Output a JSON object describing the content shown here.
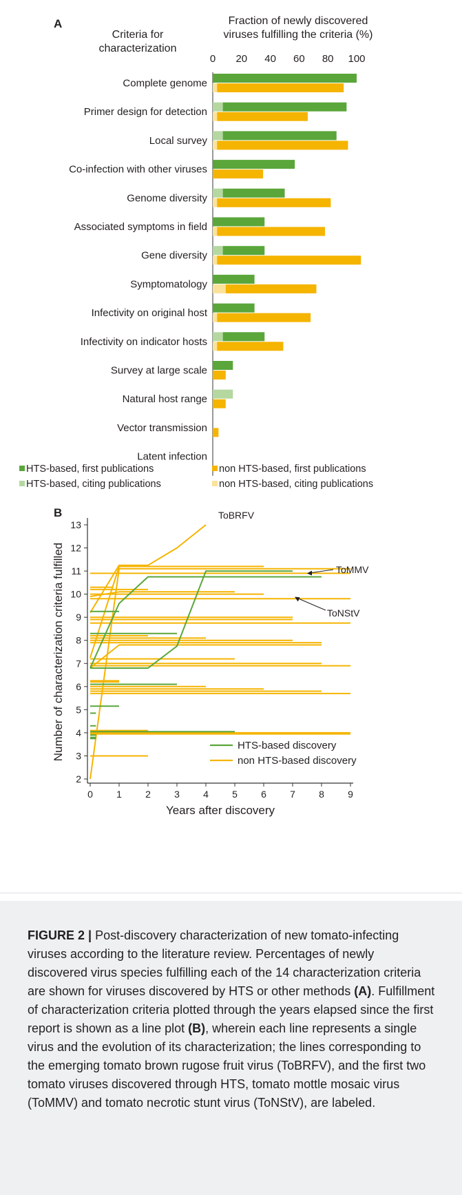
{
  "colors": {
    "hts_first": "#5aa63a",
    "hts_citing": "#b4d8a0",
    "non_hts_first": "#f5b400",
    "non_hts_citing": "#fbe29a",
    "axis": "#333333"
  },
  "chart_data": [
    {
      "panel_label": "A",
      "type": "bar",
      "orientation": "horizontal",
      "row_header": [
        "Criteria for",
        "characterization"
      ],
      "title": [
        "Fraction of newly discovered",
        "viruses fulfilling the criteria (%)"
      ],
      "xlim": [
        0,
        100
      ],
      "xticks": [
        0,
        20,
        40,
        60,
        80,
        100
      ],
      "categories": [
        "Complete genome",
        "Primer design for detection",
        "Local survey",
        "Co-infection with other viruses",
        "Genome diversity",
        "Associated symptoms in field",
        "Gene diversity",
        "Symptomatology",
        "Infectivity on original host",
        "Infectivity on indicator hosts",
        "Survey at large scale",
        "Natural host range",
        "Vector transmission",
        "Latent infection"
      ],
      "series": [
        {
          "name": "HTS-based, first publications",
          "group": "hts",
          "layer": "first",
          "values": [
            100,
            86,
            79,
            57,
            43,
            36,
            29,
            29,
            29,
            29,
            14,
            0,
            0,
            0
          ]
        },
        {
          "name": "HTS-based, citing publications",
          "group": "hts",
          "layer": "citing",
          "values": [
            0,
            7,
            7,
            0,
            7,
            0,
            7,
            0,
            0,
            7,
            0,
            14,
            0,
            0
          ]
        },
        {
          "name": "non HTS-based, first publications",
          "group": "non_hts",
          "layer": "first",
          "values": [
            88,
            63,
            91,
            35,
            79,
            75,
            100,
            63,
            65,
            46,
            9,
            9,
            4,
            0
          ]
        },
        {
          "name": "non HTS-based, citing publications",
          "group": "non_hts",
          "layer": "citing",
          "values": [
            3,
            3,
            3,
            0,
            3,
            3,
            3,
            9,
            3,
            3,
            0,
            0,
            0,
            0
          ]
        }
      ],
      "legend_position": "bottom"
    },
    {
      "panel_label": "B",
      "type": "line",
      "xlabel": "Years after discovery",
      "ylabel": "Number of characterization criteria fulfilled",
      "xlim": [
        0,
        9
      ],
      "ylim": [
        2,
        13
      ],
      "xticks": [
        0,
        1,
        2,
        3,
        4,
        5,
        6,
        7,
        8,
        9
      ],
      "yticks": [
        2,
        3,
        4,
        5,
        6,
        7,
        8,
        9,
        10,
        11,
        12,
        13
      ],
      "series": [
        {
          "name": "HTS-based discovery",
          "group": "hts"
        },
        {
          "name": "non HTS-based discovery",
          "group": "non_hts"
        }
      ],
      "lines": [
        {
          "group": "non_hts",
          "label": "ToBRFV",
          "x": [
            0,
            1,
            2,
            3,
            4
          ],
          "y": [
            9.2,
            11.25,
            11.25,
            12,
            13
          ]
        },
        {
          "group": "hts",
          "label": "ToMMV",
          "x": [
            0,
            1,
            2,
            3,
            4,
            8
          ],
          "y": [
            6.8,
            9.6,
            10.75,
            10.75,
            10.75,
            10.75
          ]
        },
        {
          "group": "hts",
          "label": "ToNStV",
          "x": [
            0,
            2,
            3,
            4,
            7
          ],
          "y": [
            6.8,
            6.8,
            7.75,
            11,
            11
          ]
        },
        {
          "group": "non_hts",
          "x": [
            0,
            1,
            9
          ],
          "y": [
            2,
            11.1,
            11.1
          ]
        },
        {
          "group": "non_hts",
          "x": [
            0,
            1,
            6
          ],
          "y": [
            7.25,
            11.2,
            11.2
          ]
        },
        {
          "group": "non_hts",
          "x": [
            0,
            9
          ],
          "y": [
            10.9,
            10.9
          ]
        },
        {
          "group": "non_hts",
          "x": [
            0,
            0.8
          ],
          "y": [
            10.3,
            10.3
          ]
        },
        {
          "group": "non_hts",
          "x": [
            0,
            2
          ],
          "y": [
            10.2,
            10.2
          ]
        },
        {
          "group": "non_hts",
          "x": [
            0,
            1,
            5
          ],
          "y": [
            9.9,
            10.1,
            10.1
          ]
        },
        {
          "group": "non_hts",
          "x": [
            0,
            6
          ],
          "y": [
            10,
            10
          ]
        },
        {
          "group": "non_hts",
          "x": [
            0,
            9
          ],
          "y": [
            9.8,
            9.8
          ]
        },
        {
          "group": "hts",
          "x": [
            0,
            1
          ],
          "y": [
            9.25,
            9.25
          ]
        },
        {
          "group": "non_hts",
          "x": [
            0,
            7
          ],
          "y": [
            9.0,
            9.0
          ]
        },
        {
          "group": "non_hts",
          "x": [
            0,
            7
          ],
          "y": [
            8.9,
            8.9
          ]
        },
        {
          "group": "non_hts",
          "x": [
            0,
            9
          ],
          "y": [
            8.75,
            8.75
          ]
        },
        {
          "group": "hts",
          "x": [
            0,
            3
          ],
          "y": [
            8.3,
            8.3
          ]
        },
        {
          "group": "non_hts",
          "x": [
            0,
            2
          ],
          "y": [
            8.2,
            8.2
          ]
        },
        {
          "group": "non_hts",
          "x": [
            0,
            4
          ],
          "y": [
            8.1,
            8.1
          ]
        },
        {
          "group": "non_hts",
          "x": [
            0,
            7
          ],
          "y": [
            8.0,
            8.0
          ]
        },
        {
          "group": "non_hts",
          "x": [
            0,
            8
          ],
          "y": [
            7.9,
            7.9
          ]
        },
        {
          "group": "non_hts",
          "x": [
            0,
            1,
            8
          ],
          "y": [
            6.8,
            7.8,
            7.8
          ]
        },
        {
          "group": "non_hts",
          "x": [
            0,
            5
          ],
          "y": [
            7.2,
            7.2
          ]
        },
        {
          "group": "non_hts",
          "x": [
            0,
            8
          ],
          "y": [
            7.0,
            7.0
          ]
        },
        {
          "group": "non_hts",
          "x": [
            0,
            9
          ],
          "y": [
            6.9,
            6.9
          ]
        },
        {
          "group": "non_hts",
          "x": [
            0,
            1
          ],
          "y": [
            6.25,
            6.25
          ]
        },
        {
          "group": "non_hts",
          "x": [
            0,
            1
          ],
          "y": [
            6.2,
            6.2
          ]
        },
        {
          "group": "hts",
          "x": [
            0,
            3
          ],
          "y": [
            6.1,
            6.1
          ]
        },
        {
          "group": "non_hts",
          "x": [
            0,
            4
          ],
          "y": [
            6.0,
            6.0
          ]
        },
        {
          "group": "non_hts",
          "x": [
            0,
            6
          ],
          "y": [
            5.9,
            5.9
          ]
        },
        {
          "group": "non_hts",
          "x": [
            0,
            8
          ],
          "y": [
            5.8,
            5.8
          ]
        },
        {
          "group": "non_hts",
          "x": [
            0,
            9
          ],
          "y": [
            5.7,
            5.7
          ]
        },
        {
          "group": "hts",
          "x": [
            0,
            1
          ],
          "y": [
            5.15,
            5.15
          ]
        },
        {
          "group": "hts",
          "x": [
            0,
            0.2
          ],
          "y": [
            4.85,
            4.85
          ]
        },
        {
          "group": "hts",
          "x": [
            0,
            0.2
          ],
          "y": [
            4.3,
            4.3
          ]
        },
        {
          "group": "non_hts",
          "x": [
            0,
            2
          ],
          "y": [
            4.1,
            4.1
          ]
        },
        {
          "group": "hts",
          "x": [
            0,
            5
          ],
          "y": [
            4.05,
            4.05
          ]
        },
        {
          "group": "non_hts",
          "x": [
            0,
            9
          ],
          "y": [
            4.0,
            4.0
          ]
        },
        {
          "group": "non_hts",
          "x": [
            0,
            9
          ],
          "y": [
            3.95,
            3.95
          ]
        },
        {
          "group": "hts",
          "x": [
            0,
            0.2
          ],
          "y": [
            3.9,
            3.9
          ]
        },
        {
          "group": "hts",
          "x": [
            0,
            0.2
          ],
          "y": [
            3.8,
            3.8
          ]
        },
        {
          "group": "hts",
          "x": [
            0,
            0.2
          ],
          "y": [
            3.75,
            3.75
          ]
        },
        {
          "group": "non_hts",
          "x": [
            0,
            2
          ],
          "y": [
            3.0,
            3.0
          ]
        }
      ],
      "annotations": [
        {
          "text": "ToBRFV"
        },
        {
          "text": "ToMMV"
        },
        {
          "text": "ToNStV"
        }
      ],
      "legend_position": "bottom-right"
    }
  ],
  "caption": {
    "figure_label": "FIGURE 2 |",
    "parts": [
      {
        "text": " Post-discovery characterization of new tomato-infecting viruses according to the literature review. Percentages of newly discovered virus species fulfilling each of the 14 characterization criteria are shown for viruses discovered by HTS or other methods ",
        "bold": false
      },
      {
        "text": "(A)",
        "bold": true
      },
      {
        "text": ". Fulfillment of characterization criteria plotted through the years elapsed since the first report is shown as a line plot ",
        "bold": false
      },
      {
        "text": "(B)",
        "bold": true
      },
      {
        "text": ", wherein each line represents a single virus and the evolution of its characterization; the lines corresponding to the emerging tomato brown rugose fruit virus (ToBRFV), and the first two tomato viruses discovered through HTS, tomato mottle mosaic virus (ToMMV) and tomato necrotic stunt virus (ToNStV), are labeled.",
        "bold": false
      }
    ]
  }
}
